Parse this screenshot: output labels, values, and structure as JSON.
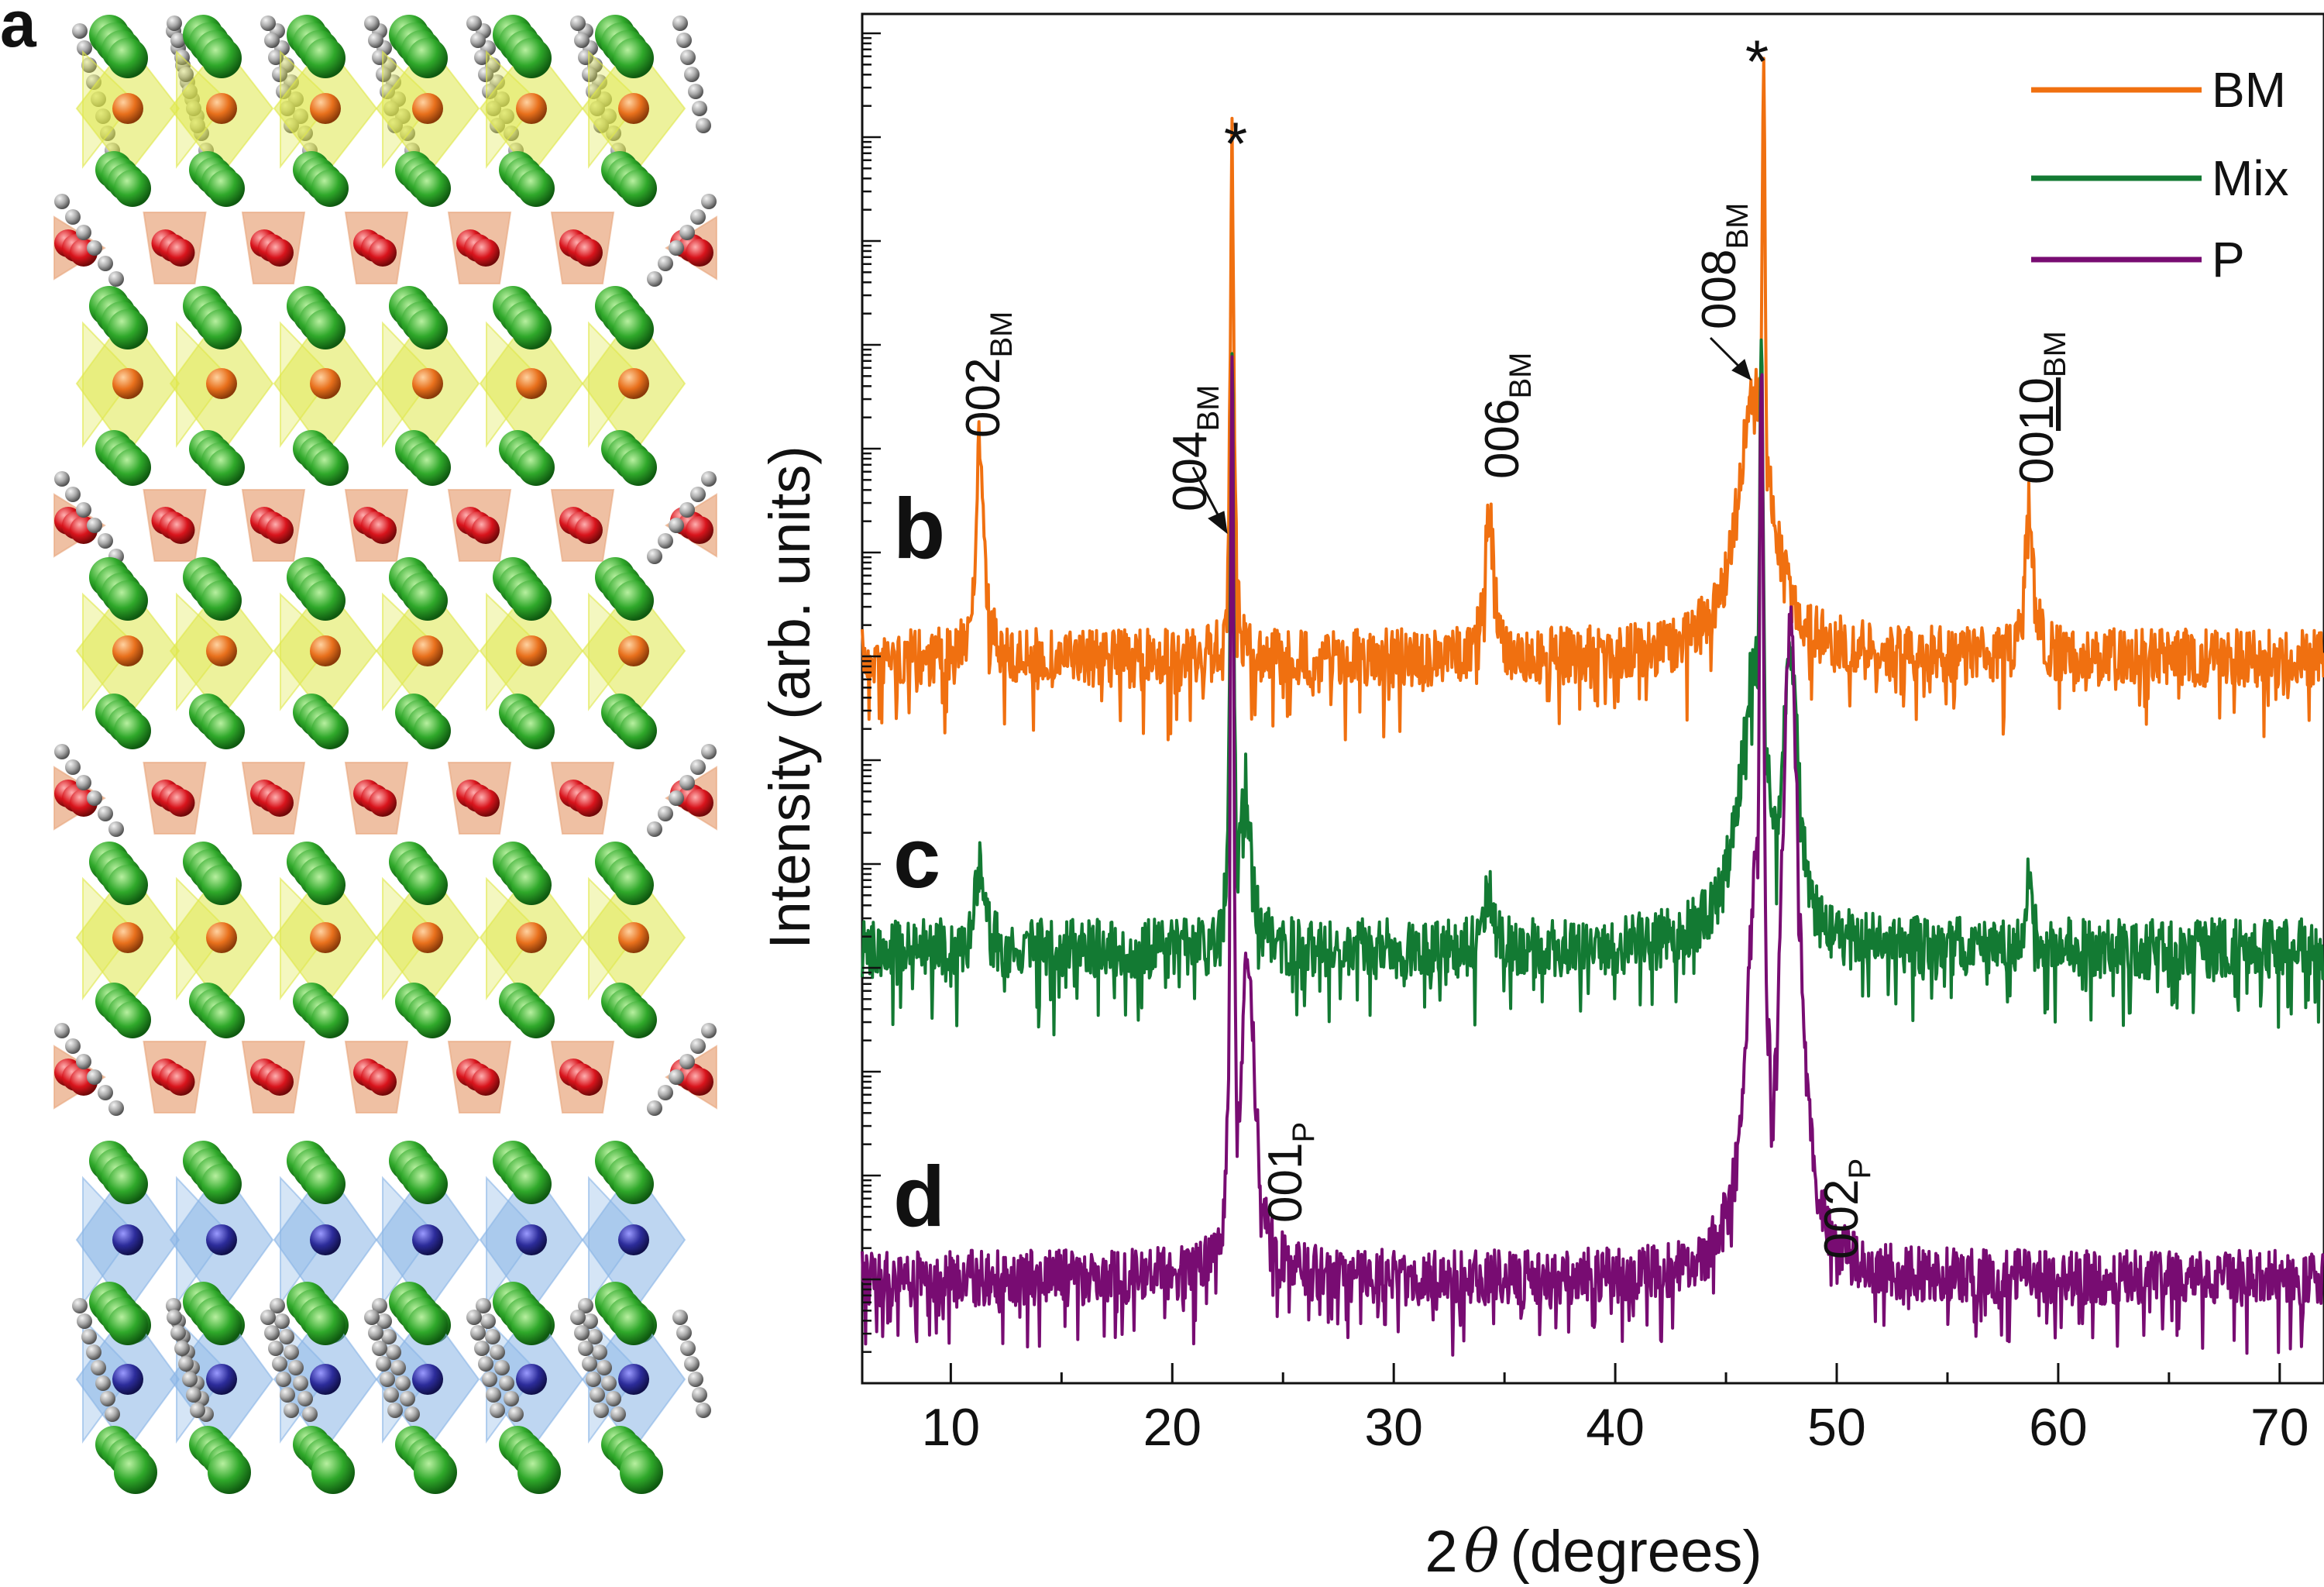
{
  "panels": {
    "a": "a",
    "b": "b",
    "c": "c",
    "d": "d"
  },
  "colors": {
    "bm": "#f07010",
    "mix": "#137a33",
    "p": "#780c72",
    "green_atom": "#2fa82a",
    "orange_atom": "#e8701c",
    "red_atom": "#d8141c",
    "blue_atom": "#2c2c9a",
    "grey_atom": "#a8a8a8",
    "yellow_poly": "#dfe84a",
    "salmon_poly": "#e8a57c",
    "blue_poly": "#88b4e6"
  },
  "chart_data": {
    "type": "line",
    "xlabel_prefix": "2",
    "xlabel_symbol": "θ",
    "xlabel_suffix": "(degrees)",
    "ylabel": "Intensity (arb. units)",
    "xlim": [
      6,
      72
    ],
    "xticks": [
      10,
      20,
      30,
      40,
      50,
      60,
      70
    ],
    "yscale": "log",
    "legend_position": "top-right",
    "series": [
      {
        "name": "BM",
        "panel": "b",
        "peaks": [
          {
            "x": 11.3,
            "height": 0.36,
            "width": 0.22
          },
          {
            "x": 22.7,
            "height": 0.85,
            "width": 0.1
          },
          {
            "x": 34.3,
            "height": 0.25,
            "width": 0.24
          },
          {
            "x": 46.3,
            "height": 0.45,
            "width": 0.9
          },
          {
            "x": 46.7,
            "height": 1.0,
            "width": 0.1
          },
          {
            "x": 58.7,
            "height": 0.25,
            "width": 0.24
          }
        ]
      },
      {
        "name": "Mix",
        "panel": "c",
        "peaks": [
          {
            "x": 11.3,
            "height": 0.14,
            "width": 0.22
          },
          {
            "x": 22.7,
            "height": 1.0,
            "width": 0.1
          },
          {
            "x": 23.3,
            "height": 0.28,
            "width": 0.3
          },
          {
            "x": 34.3,
            "height": 0.1,
            "width": 0.24
          },
          {
            "x": 46.6,
            "height": 1.0,
            "width": 0.14
          },
          {
            "x": 46.3,
            "height": 0.48,
            "width": 0.8
          },
          {
            "x": 47.9,
            "height": 0.5,
            "width": 0.45
          },
          {
            "x": 58.7,
            "height": 0.12,
            "width": 0.22
          }
        ]
      },
      {
        "name": "P",
        "panel": "d",
        "peaks": [
          {
            "x": 22.7,
            "height": 1.0,
            "width": 0.1
          },
          {
            "x": 23.4,
            "height": 0.35,
            "width": 0.4
          },
          {
            "x": 46.6,
            "height": 1.0,
            "width": 0.14
          },
          {
            "x": 46.4,
            "height": 0.45,
            "width": 0.6
          },
          {
            "x": 47.9,
            "height": 0.7,
            "width": 0.5
          }
        ]
      }
    ],
    "peak_labels": [
      {
        "id": "002bm",
        "base": "002",
        "sub": "BM"
      },
      {
        "id": "004bm",
        "base": "004",
        "sub": "BM"
      },
      {
        "id": "006bm",
        "base": "006",
        "sub": "BM"
      },
      {
        "id": "008bm",
        "base": "008",
        "sub": "BM"
      },
      {
        "id": "0010bm",
        "base": "00",
        "underlined": "10",
        "sub": "BM"
      },
      {
        "id": "001p",
        "base": "001",
        "sub": "P"
      },
      {
        "id": "002p",
        "base": "002",
        "sub": "P"
      }
    ],
    "star_marker": "*"
  }
}
